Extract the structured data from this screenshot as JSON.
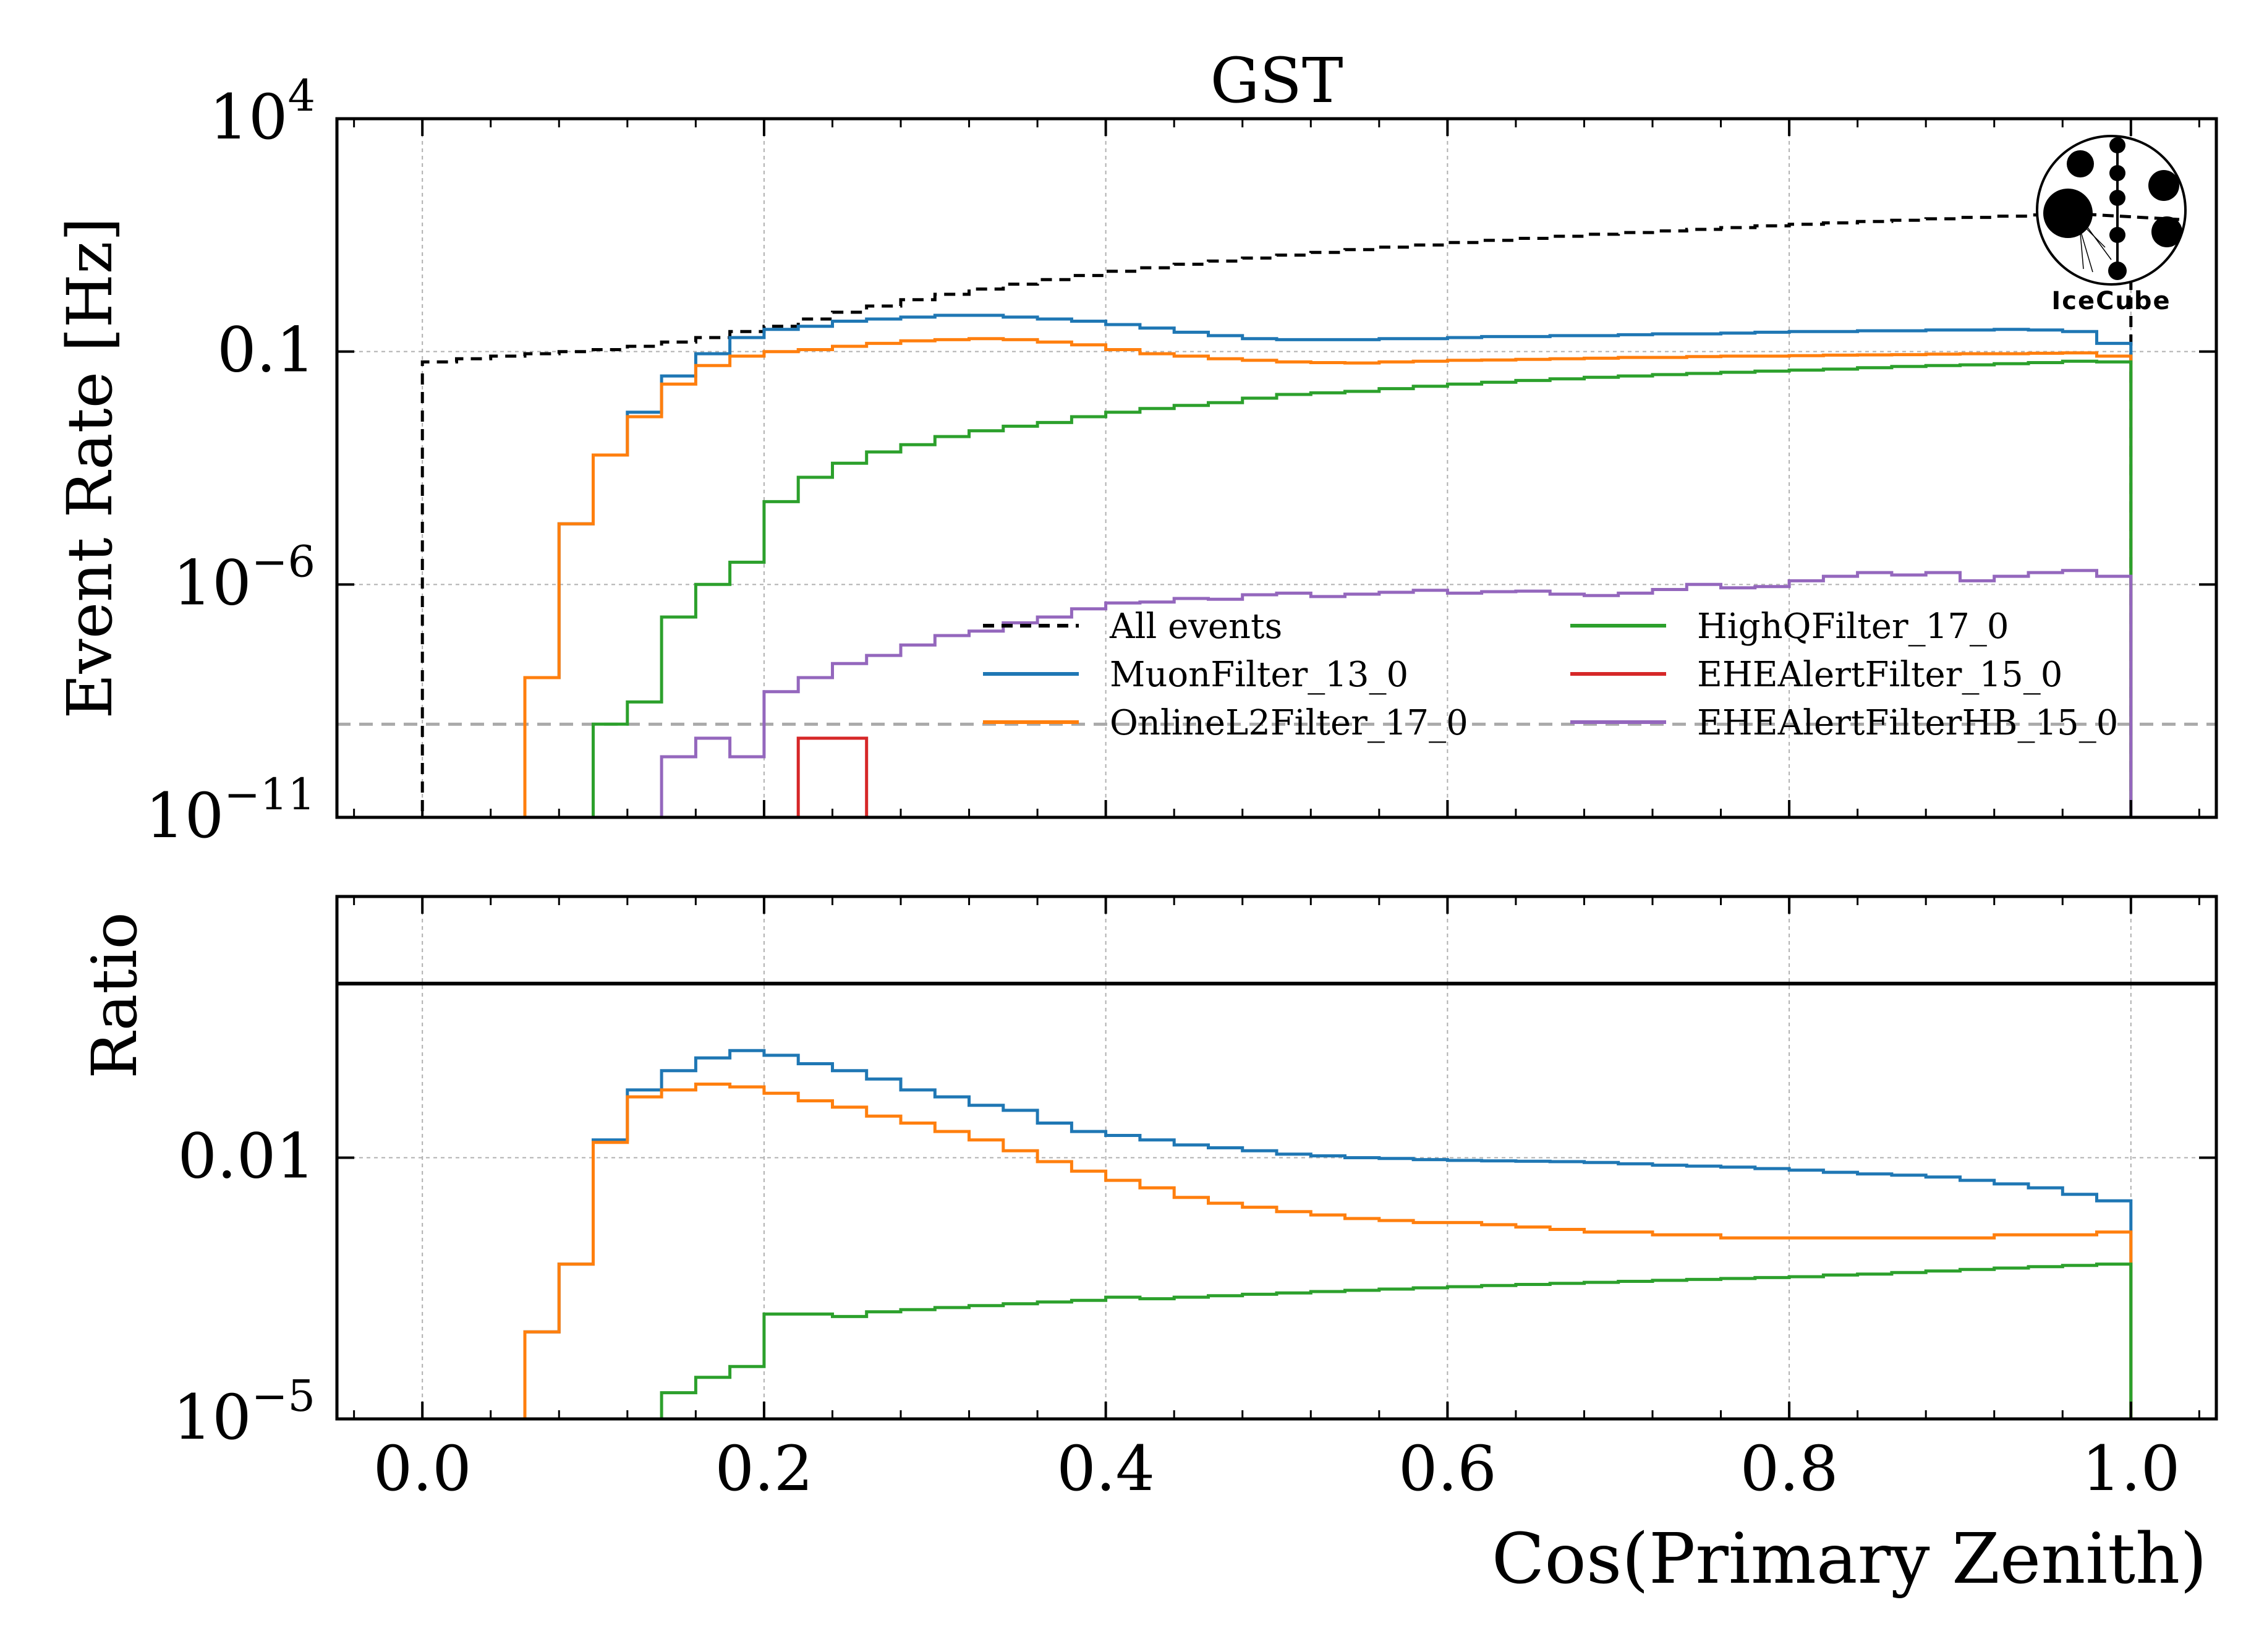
{
  "chart_data": [
    {
      "type": "line",
      "panel": "top",
      "title": "GST",
      "xlabel": "",
      "ylabel": "Event Rate [Hz]",
      "yscale": "log",
      "ylim": [
        1e-11,
        10000
      ],
      "xlim": [
        -0.05,
        1.05
      ],
      "grid": true,
      "legend_placement": "lower-right",
      "yticks": [
        {
          "value": 1e-11,
          "base": "10",
          "exp": "−11"
        },
        {
          "value": 1e-06,
          "base": "10",
          "exp": "−6"
        },
        {
          "value": 0.1,
          "base": "0.1",
          "exp": ""
        },
        {
          "value": 10000,
          "base": "10",
          "exp": "4"
        }
      ],
      "reference_line": {
        "y": 1e-09,
        "color": "#aaaaaa",
        "style": "dashed"
      },
      "bin_edges": [
        0.0,
        0.02,
        0.04,
        0.06,
        0.08,
        0.1,
        0.12,
        0.14,
        0.16,
        0.18,
        0.2,
        0.22,
        0.24,
        0.26,
        0.28,
        0.3,
        0.32,
        0.34,
        0.36,
        0.38,
        0.4,
        0.42,
        0.44,
        0.46,
        0.48,
        0.5,
        0.52,
        0.54,
        0.56,
        0.58,
        0.6,
        0.62,
        0.64,
        0.66,
        0.68,
        0.7,
        0.72,
        0.74,
        0.76,
        0.78,
        0.8,
        0.82,
        0.84,
        0.86,
        0.88,
        0.9,
        0.92,
        0.94,
        0.96,
        0.98,
        1.0
      ],
      "series": [
        {
          "name": "All events",
          "color": "#000000",
          "style": "dashed",
          "values": [
            0.06,
            0.07,
            0.08,
            0.09,
            0.1,
            0.11,
            0.13,
            0.16,
            0.2,
            0.27,
            0.35,
            0.5,
            0.7,
            0.95,
            1.3,
            1.7,
            2.2,
            2.8,
            3.5,
            4.3,
            5.3,
            6.3,
            7.5,
            8.8,
            10.2,
            11.8,
            13.5,
            15.5,
            17.5,
            19.5,
            22,
            24.5,
            27,
            30,
            33,
            36,
            39,
            42,
            46,
            50,
            54,
            58,
            62,
            66,
            71,
            76,
            81,
            86,
            92,
            98
          ]
        },
        {
          "name": "MuonFilter_13_0",
          "color": "#1f77b4",
          "style": "solid",
          "values": [
            null,
            null,
            1e-11,
            1e-08,
            2e-05,
            0.0006,
            0.005,
            0.03,
            0.09,
            0.2,
            0.3,
            0.35,
            0.45,
            0.5,
            0.55,
            0.6,
            0.6,
            0.55,
            0.5,
            0.45,
            0.38,
            0.32,
            0.26,
            0.22,
            0.19,
            0.18,
            0.18,
            0.18,
            0.19,
            0.19,
            0.2,
            0.21,
            0.21,
            0.22,
            0.22,
            0.23,
            0.24,
            0.24,
            0.25,
            0.26,
            0.27,
            0.27,
            0.28,
            0.28,
            0.29,
            0.29,
            0.3,
            0.29,
            0.27,
            0.15
          ]
        },
        {
          "name": "OnlineL2Filter_17_0",
          "color": "#ff7f0e",
          "style": "solid",
          "values": [
            null,
            null,
            1e-11,
            1e-08,
            2e-05,
            0.0006,
            0.004,
            0.02,
            0.05,
            0.08,
            0.1,
            0.11,
            0.13,
            0.15,
            0.17,
            0.18,
            0.19,
            0.18,
            0.16,
            0.14,
            0.11,
            0.09,
            0.08,
            0.07,
            0.065,
            0.06,
            0.058,
            0.057,
            0.06,
            0.062,
            0.065,
            0.066,
            0.068,
            0.07,
            0.072,
            0.075,
            0.075,
            0.078,
            0.08,
            0.08,
            0.082,
            0.084,
            0.085,
            0.086,
            0.088,
            0.09,
            0.09,
            0.092,
            0.094,
            0.08
          ]
        },
        {
          "name": "HighQFilter_17_0",
          "color": "#2ca02c",
          "style": "solid",
          "values": [
            null,
            null,
            null,
            null,
            null,
            1e-09,
            3e-09,
            2e-07,
            1e-06,
            3e-06,
            6e-05,
            0.0002,
            0.0004,
            0.0007,
            0.001,
            0.0015,
            0.002,
            0.0025,
            0.003,
            0.004,
            0.005,
            0.006,
            0.007,
            0.008,
            0.01,
            0.012,
            0.013,
            0.014,
            0.016,
            0.018,
            0.02,
            0.022,
            0.024,
            0.026,
            0.028,
            0.03,
            0.032,
            0.034,
            0.036,
            0.038,
            0.04,
            0.042,
            0.045,
            0.048,
            0.05,
            0.052,
            0.055,
            0.058,
            0.062,
            0.06
          ]
        },
        {
          "name": "EHEAlertFilter_15_0",
          "color": "#d62728",
          "style": "solid",
          "values": [
            null,
            null,
            null,
            null,
            null,
            null,
            null,
            null,
            null,
            null,
            null,
            5e-10,
            5e-10,
            null,
            null,
            null,
            null,
            null,
            null,
            null,
            null,
            null,
            null,
            null,
            null,
            null,
            null,
            null,
            null,
            null,
            null,
            null,
            null,
            null,
            null,
            null,
            null,
            null,
            null,
            null,
            null,
            null,
            null,
            null,
            null,
            null,
            null,
            null,
            null,
            null
          ]
        },
        {
          "name": "EHEAlertFilterHB_15_0",
          "color": "#9467bd",
          "style": "solid",
          "values": [
            null,
            null,
            null,
            null,
            null,
            null,
            null,
            2e-10,
            5e-10,
            2e-10,
            5e-09,
            1e-08,
            2e-08,
            3e-08,
            5e-08,
            8e-08,
            1e-07,
            1.5e-07,
            2e-07,
            3e-07,
            4e-07,
            4.2e-07,
            5e-07,
            4.8e-07,
            6e-07,
            6.5e-07,
            5.5e-07,
            6.2e-07,
            6.8e-07,
            7.5e-07,
            6.5e-07,
            7e-07,
            7.2e-07,
            6.2e-07,
            5.8e-07,
            6.5e-07,
            7.8e-07,
            1e-06,
            8.5e-07,
            9e-07,
            1.2e-06,
            1.5e-06,
            1.8e-06,
            1.6e-06,
            1.8e-06,
            1.2e-06,
            1.5e-06,
            1.8e-06,
            2e-06,
            1.5e-06
          ]
        }
      ]
    },
    {
      "type": "line",
      "panel": "bottom",
      "title": "",
      "xlabel": "Cos(Primary Zenith)",
      "ylabel": "Ratio",
      "yscale": "log",
      "ylim": [
        1e-05,
        10
      ],
      "xlim": [
        -0.05,
        1.05
      ],
      "grid": true,
      "yticks": [
        {
          "value": 1e-05,
          "base": "10",
          "exp": "−5"
        },
        {
          "value": 0.01,
          "base": "0.01",
          "exp": ""
        }
      ],
      "xticks": [
        "0.0",
        "0.2",
        "0.4",
        "0.6",
        "0.8",
        "1.0"
      ],
      "reference_line": {
        "y": 1,
        "color": "#000000",
        "style": "solid"
      },
      "bin_edges": [
        0.0,
        0.02,
        0.04,
        0.06,
        0.08,
        0.1,
        0.12,
        0.14,
        0.16,
        0.18,
        0.2,
        0.22,
        0.24,
        0.26,
        0.28,
        0.3,
        0.32,
        0.34,
        0.36,
        0.38,
        0.4,
        0.42,
        0.44,
        0.46,
        0.48,
        0.5,
        0.52,
        0.54,
        0.56,
        0.58,
        0.6,
        0.62,
        0.64,
        0.66,
        0.68,
        0.7,
        0.72,
        0.74,
        0.76,
        0.78,
        0.8,
        0.82,
        0.84,
        0.86,
        0.88,
        0.9,
        0.92,
        0.94,
        0.96,
        0.98,
        1.0
      ],
      "series": [
        {
          "name": "MuonFilter_13_0",
          "color": "#1f77b4",
          "values": [
            null,
            null,
            null,
            0.0001,
            0.0006,
            0.016,
            0.06,
            0.1,
            0.14,
            0.17,
            0.15,
            0.12,
            0.1,
            0.08,
            0.06,
            0.05,
            0.04,
            0.035,
            0.025,
            0.02,
            0.018,
            0.016,
            0.014,
            0.013,
            0.012,
            0.011,
            0.0105,
            0.01,
            0.0098,
            0.0095,
            0.0093,
            0.0092,
            0.0091,
            0.009,
            0.0088,
            0.0085,
            0.0082,
            0.008,
            0.0078,
            0.0075,
            0.0072,
            0.0068,
            0.0065,
            0.0063,
            0.006,
            0.0055,
            0.005,
            0.0045,
            0.0038,
            0.0032
          ]
        },
        {
          "name": "OnlineL2Filter_17_0",
          "color": "#ff7f0e",
          "values": [
            null,
            null,
            null,
            0.0001,
            0.0006,
            0.015,
            0.05,
            0.06,
            0.07,
            0.065,
            0.055,
            0.045,
            0.038,
            0.03,
            0.025,
            0.02,
            0.016,
            0.012,
            0.009,
            0.007,
            0.0055,
            0.0045,
            0.0035,
            0.003,
            0.0027,
            0.0024,
            0.0022,
            0.002,
            0.0019,
            0.0018,
            0.0018,
            0.0017,
            0.0016,
            0.0015,
            0.0014,
            0.0014,
            0.0013,
            0.0013,
            0.0012,
            0.0012,
            0.0012,
            0.0012,
            0.0012,
            0.0012,
            0.0012,
            0.0012,
            0.0013,
            0.0013,
            0.0013,
            0.0014
          ]
        },
        {
          "name": "HighQFilter_17_0",
          "color": "#2ca02c",
          "values": [
            null,
            null,
            null,
            null,
            null,
            null,
            null,
            2e-05,
            3e-05,
            4e-05,
            0.00016,
            0.00016,
            0.00015,
            0.00017,
            0.00018,
            0.00019,
            0.0002,
            0.00021,
            0.00022,
            0.00023,
            0.00025,
            0.00024,
            0.00025,
            0.00026,
            0.00027,
            0.00028,
            0.00029,
            0.0003,
            0.00031,
            0.00032,
            0.00033,
            0.00034,
            0.00035,
            0.00036,
            0.00037,
            0.00038,
            0.00039,
            0.0004,
            0.00041,
            0.00042,
            0.00043,
            0.00045,
            0.00046,
            0.00048,
            0.0005,
            0.00052,
            0.00054,
            0.00056,
            0.00058,
            0.0006
          ]
        }
      ]
    }
  ],
  "legend": {
    "items": [
      {
        "label": "All events",
        "color": "#000000",
        "dashed": true
      },
      {
        "label": "MuonFilter_13_0",
        "color": "#1f77b4",
        "dashed": false
      },
      {
        "label": "OnlineL2Filter_17_0",
        "color": "#ff7f0e",
        "dashed": false
      },
      {
        "label": "HighQFilter_17_0",
        "color": "#2ca02c",
        "dashed": false
      },
      {
        "label": "EHEAlertFilter_15_0",
        "color": "#d62728",
        "dashed": false
      },
      {
        "label": "EHEAlertFilterHB_15_0",
        "color": "#9467bd",
        "dashed": false
      }
    ]
  },
  "logo": {
    "text": "IceCube"
  }
}
